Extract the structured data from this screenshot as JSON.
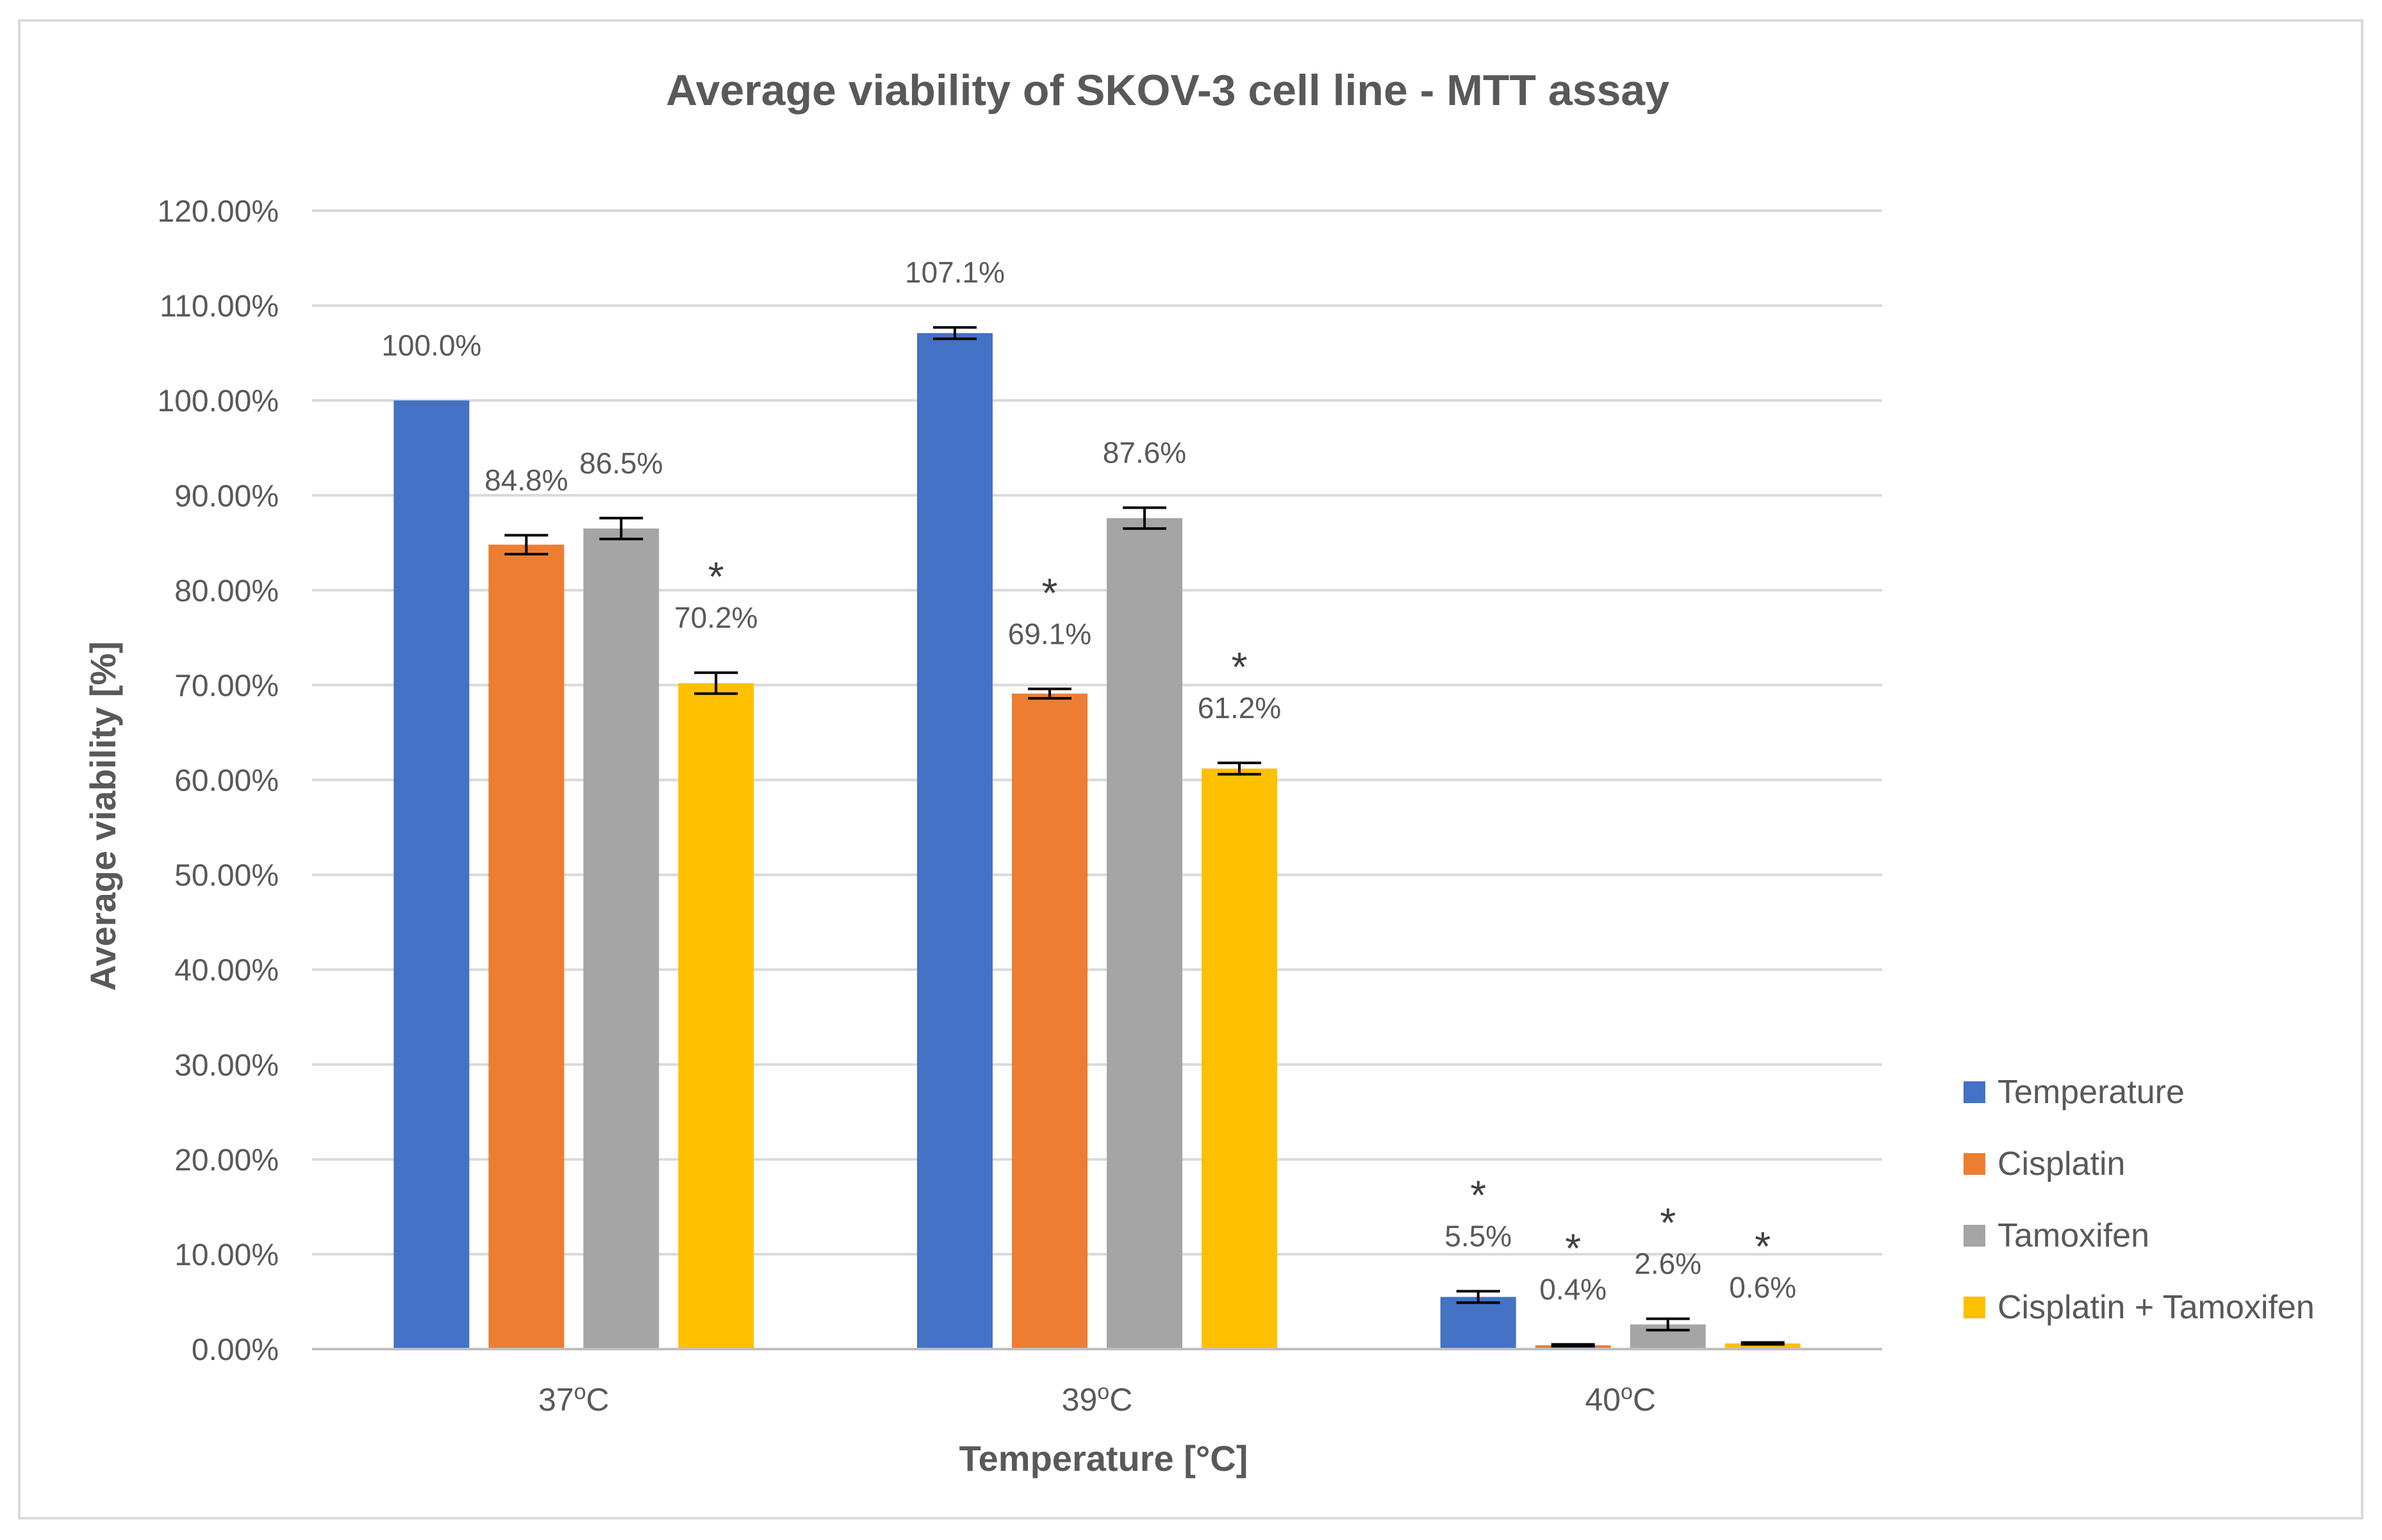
{
  "chart_data": {
    "type": "bar",
    "title": "Average viability of SKOV-3 cell line - MTT assay",
    "xlabel": "Temperature [°C]",
    "ylabel": "Average viability [%]",
    "ylim": [
      0,
      120
    ],
    "ytick_step": 10,
    "ytick_labels": [
      "0.00%",
      "10.00%",
      "20.00%",
      "30.00%",
      "40.00%",
      "50.00%",
      "60.00%",
      "70.00%",
      "80.00%",
      "90.00%",
      "100.00%",
      "110.00%",
      "120.00%"
    ],
    "grid": true,
    "legend_position": "right",
    "categories": [
      {
        "base": "37",
        "sup": "o",
        "unit": "C"
      },
      {
        "base": "39",
        "sup": "o",
        "unit": "C"
      },
      {
        "base": "40",
        "sup": "o",
        "unit": "C"
      }
    ],
    "series": [
      {
        "name": "Temperature",
        "color": "#4472c4",
        "values": [
          100.0,
          107.1,
          5.5
        ],
        "errors": [
          0,
          0.6,
          0.6
        ],
        "labels": [
          "100.0%",
          "107.1%",
          "5.5%"
        ],
        "significant": [
          false,
          false,
          true
        ]
      },
      {
        "name": "Cisplatin",
        "color": "#ed7d31",
        "values": [
          84.8,
          69.1,
          0.4
        ],
        "errors": [
          1.0,
          0.5,
          0.1
        ],
        "labels": [
          "84.8%",
          "69.1%",
          "0.4%"
        ],
        "significant": [
          false,
          true,
          true
        ]
      },
      {
        "name": "Tamoxifen",
        "color": "#a5a5a5",
        "values": [
          86.5,
          87.6,
          2.6
        ],
        "errors": [
          1.1,
          1.1,
          0.6
        ],
        "labels": [
          "86.5%",
          "87.6%",
          "2.6%"
        ],
        "significant": [
          false,
          false,
          true
        ]
      },
      {
        "name": "Cisplatin + Tamoxifen",
        "color": "#ffc000",
        "values": [
          70.2,
          61.2,
          0.6
        ],
        "errors": [
          1.1,
          0.6,
          0.1
        ],
        "labels": [
          "70.2%",
          "61.2%",
          "0.6%"
        ],
        "significant": [
          true,
          true,
          true
        ]
      }
    ],
    "significance_marker": "*"
  }
}
